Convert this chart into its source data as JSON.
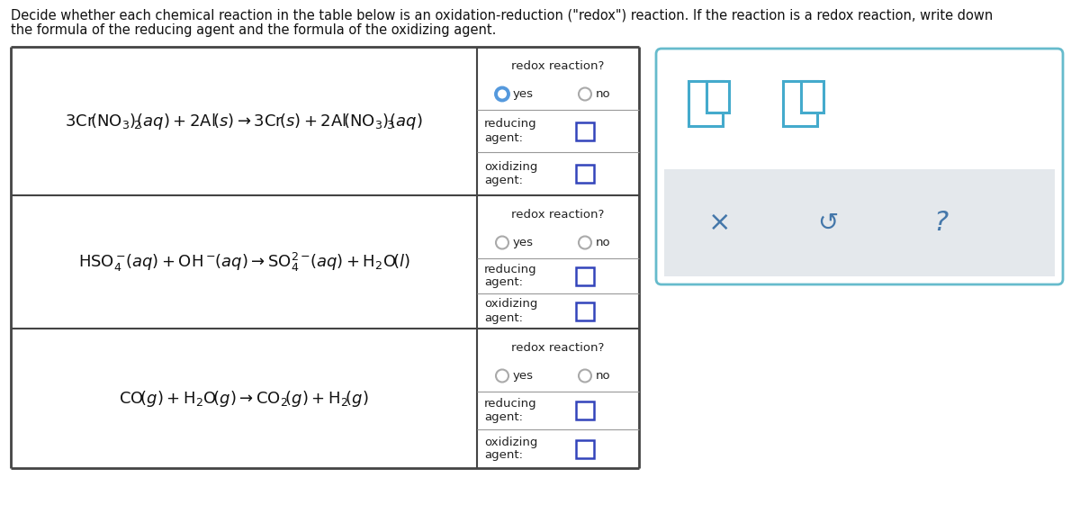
{
  "title_line1": "Decide whether each chemical reaction in the table below is an oxidation-reduction (\"redox\") reaction. If the reaction is a redox reaction, write down",
  "title_line2": "the formula of the reducing agent and the formula of the oxidizing agent.",
  "background_color": "#ffffff",
  "table_border_color": "#444444",
  "sub_border_color": "#888888",
  "redox_label": "redox reaction?",
  "yes_label": "yes",
  "no_label": "no",
  "reducing_label": "reducing\nagent:",
  "oxidizing_label": "oxidizing\nagent:",
  "radio_selected_color": "#5599dd",
  "radio_unselected_color": "#aaaaaa",
  "checkbox_color": "#3344bb",
  "panel_border_color": "#66bbcc",
  "panel_icon_color": "#44aacc",
  "panel_action_color": "#4477aa",
  "panel_gray_bg": "#e4e8ec"
}
